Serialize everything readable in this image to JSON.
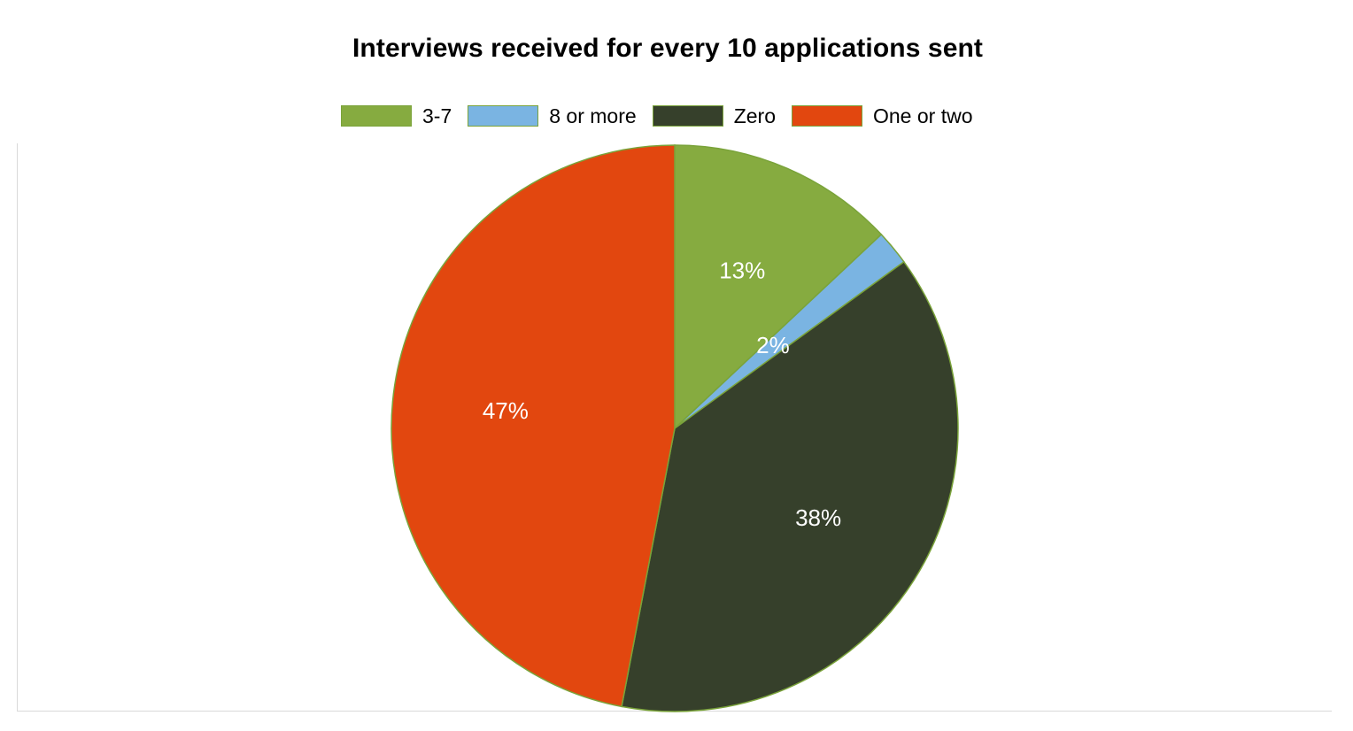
{
  "chart_data": {
    "type": "pie",
    "title": "Interviews received for every 10 applications sent",
    "legend_position": "top",
    "slices": [
      {
        "name": "3-7",
        "value": 13,
        "label": "13%",
        "color": "#86ab40"
      },
      {
        "name": "8 or more",
        "value": 2,
        "label": "2%",
        "color": "#7ab4e2"
      },
      {
        "name": "Zero",
        "value": 38,
        "label": "38%",
        "color": "#36402b"
      },
      {
        "name": "One or two",
        "value": 47,
        "label": "47%",
        "color": "#e2470f"
      }
    ],
    "slice_border_color": "#7aa33a",
    "label_color": "#ffffff"
  }
}
